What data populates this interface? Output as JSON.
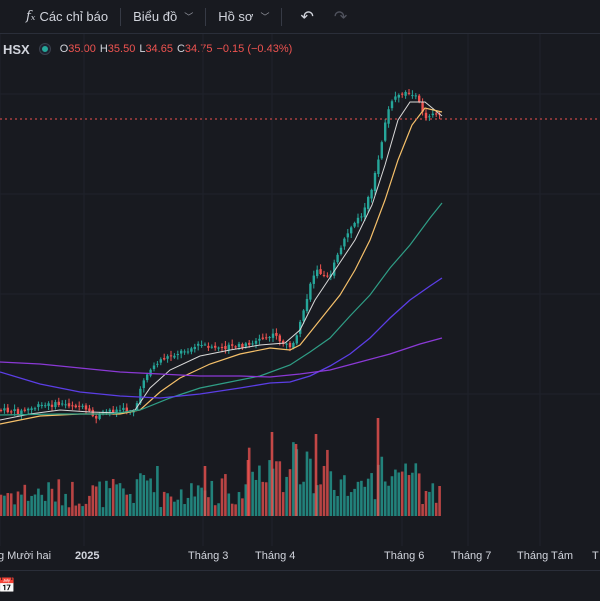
{
  "toolbar": {
    "indicators_label": "Các chỉ báo",
    "chart_type_label": "Biểu đồ",
    "profile_label": "Hồ sơ"
  },
  "legend": {
    "symbol": "HSX",
    "o_label": "O",
    "o_value": "35.00",
    "h_label": "H",
    "h_value": "35.50",
    "l_label": "L",
    "l_value": "34.65",
    "c_label": "C",
    "c_value": "34.75",
    "change": "−0.15 (−0.43%)"
  },
  "colors": {
    "up": "#26a69a",
    "down": "#ef5350",
    "ma_short": "#d9d9d9",
    "ma_mid": "#f5c06a",
    "ma_green": "#2f9e86",
    "ma_blue": "#5b3ee6",
    "ma_purple": "#8b39d6"
  },
  "xaxis": {
    "labels": [
      "g Mười hai",
      "2025",
      "Tháng 3",
      "Tháng 4",
      "Tháng 6",
      "Tháng 7",
      "Tháng Tám",
      "T"
    ]
  },
  "chart_data": {
    "type": "candlestick",
    "last_price": 34.75
  }
}
